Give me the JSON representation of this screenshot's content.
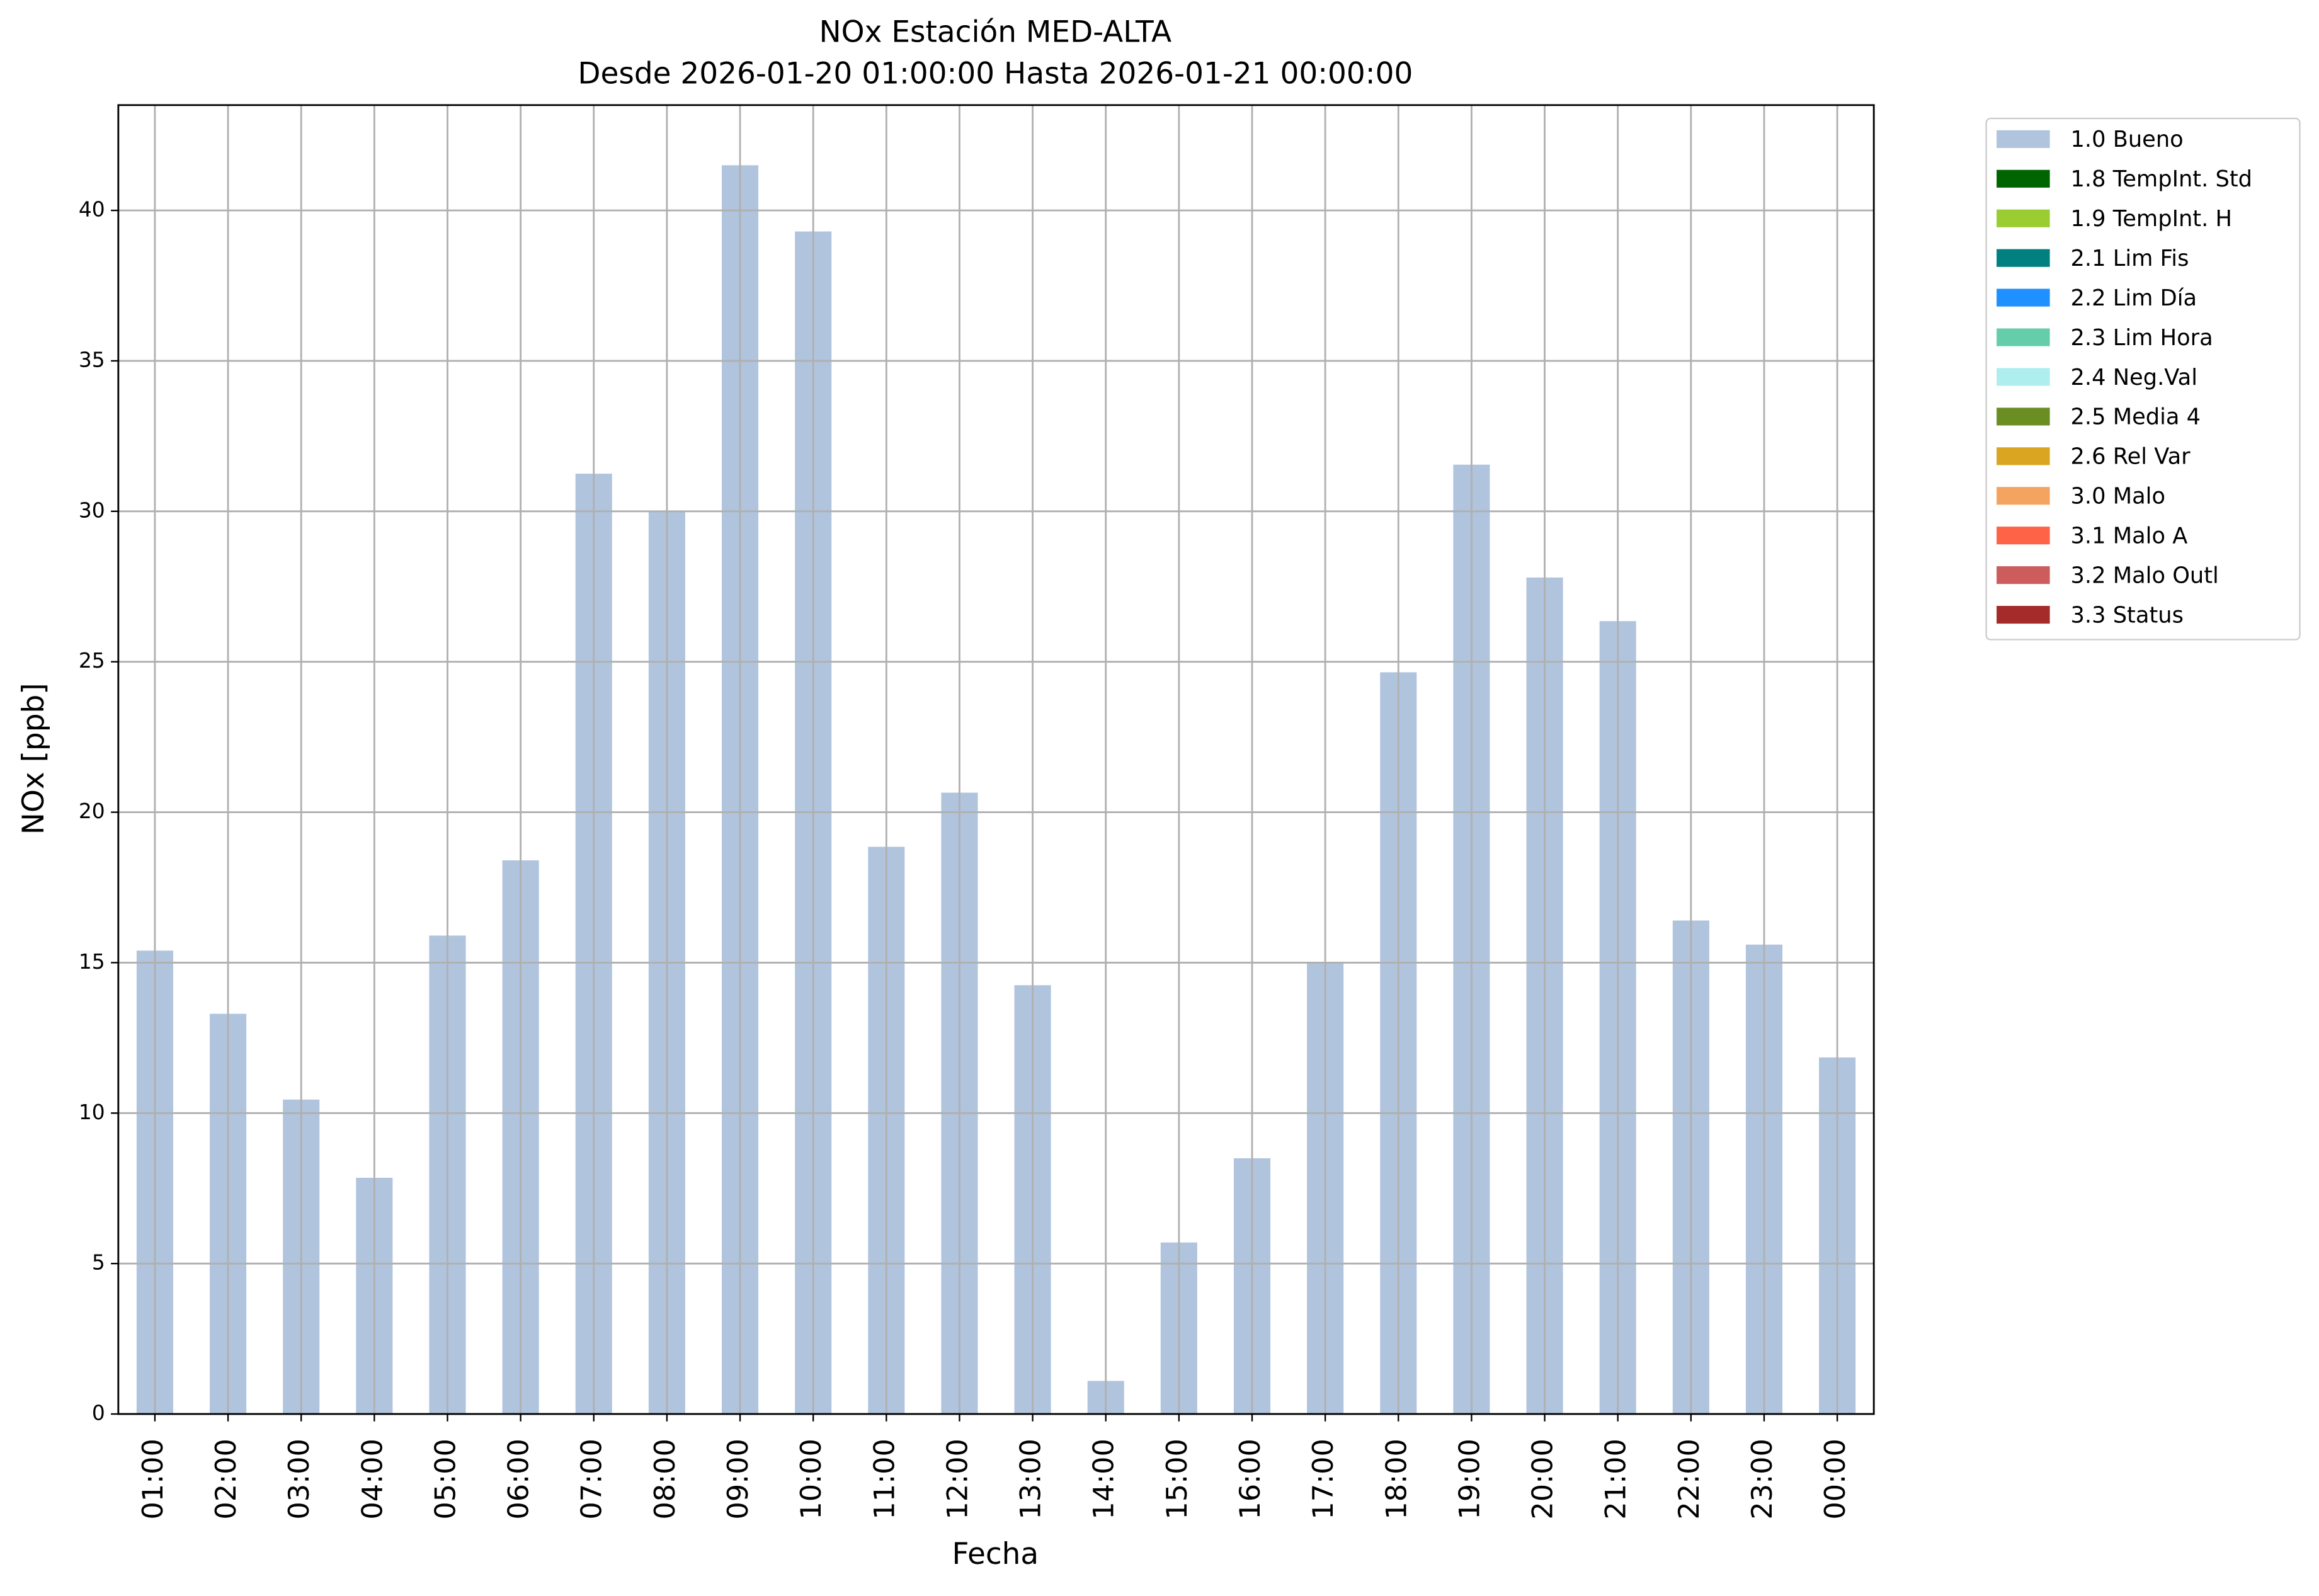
{
  "chart_data": {
    "type": "bar",
    "title": "NOx Estación MED-ALTA",
    "subtitle": "Desde 2026-01-20 01:00:00 Hasta 2026-01-21 00:00:00",
    "x_label": "Fecha",
    "y_label": "NOx [ppb]",
    "categories": [
      "01:00",
      "02:00",
      "03:00",
      "04:00",
      "05:00",
      "06:00",
      "07:00",
      "08:00",
      "09:00",
      "10:00",
      "11:00",
      "12:00",
      "13:00",
      "14:00",
      "15:00",
      "16:00",
      "17:00",
      "18:00",
      "19:00",
      "20:00",
      "21:00",
      "22:00",
      "23:00",
      "00:00"
    ],
    "series": [
      {
        "name": "1.0 Bueno",
        "color": "#b0c4de",
        "values": [
          15.4,
          13.3,
          10.45,
          7.85,
          15.9,
          18.4,
          31.25,
          30,
          41.5,
          39.3,
          18.85,
          20.65,
          14.25,
          1.1,
          5.7,
          8.5,
          15,
          24.65,
          31.55,
          27.8,
          26.35,
          16.4,
          15.6,
          11.85
        ]
      },
      {
        "name": "1.8 TempInt. Std",
        "color": "#006400",
        "values": [
          null,
          null,
          null,
          null,
          null,
          null,
          null,
          null,
          null,
          null,
          null,
          null,
          null,
          null,
          null,
          null,
          null,
          null,
          null,
          null,
          null,
          null,
          null,
          null
        ]
      },
      {
        "name": "1.9 TempInt. H",
        "color": "#9acd32",
        "values": [
          null,
          null,
          null,
          null,
          null,
          null,
          null,
          null,
          null,
          null,
          null,
          null,
          null,
          null,
          null,
          null,
          null,
          null,
          null,
          null,
          null,
          null,
          null,
          null
        ]
      },
      {
        "name": "2.1 Lim Fis",
        "color": "#008080",
        "values": [
          null,
          null,
          null,
          null,
          null,
          null,
          null,
          null,
          null,
          null,
          null,
          null,
          null,
          null,
          null,
          null,
          null,
          null,
          null,
          null,
          null,
          null,
          null,
          null
        ]
      },
      {
        "name": "2.2 Lim Día",
        "color": "#1e90ff",
        "values": [
          null,
          null,
          null,
          null,
          null,
          null,
          null,
          null,
          null,
          null,
          null,
          null,
          null,
          null,
          null,
          null,
          null,
          null,
          null,
          null,
          null,
          null,
          null,
          null
        ]
      },
      {
        "name": "2.3 Lim Hora",
        "color": "#66cdaa",
        "values": [
          null,
          null,
          null,
          null,
          null,
          null,
          null,
          null,
          null,
          null,
          null,
          null,
          null,
          null,
          null,
          null,
          null,
          null,
          null,
          null,
          null,
          null,
          null,
          null
        ]
      },
      {
        "name": "2.4 Neg.Val",
        "color": "#afeeee",
        "values": [
          null,
          null,
          null,
          null,
          null,
          null,
          null,
          null,
          null,
          null,
          null,
          null,
          null,
          null,
          null,
          null,
          null,
          null,
          null,
          null,
          null,
          null,
          null,
          null
        ]
      },
      {
        "name": "2.5 Media 4",
        "color": "#6b8e23",
        "values": [
          null,
          null,
          null,
          null,
          null,
          null,
          null,
          null,
          null,
          null,
          null,
          null,
          null,
          null,
          null,
          null,
          null,
          null,
          null,
          null,
          null,
          null,
          null,
          null
        ]
      },
      {
        "name": "2.6 Rel Var",
        "color": "#daa520",
        "values": [
          null,
          null,
          null,
          null,
          null,
          null,
          null,
          null,
          null,
          null,
          null,
          null,
          null,
          null,
          null,
          null,
          null,
          null,
          null,
          null,
          null,
          null,
          null,
          null
        ]
      },
      {
        "name": "3.0 Malo",
        "color": "#f4a460",
        "values": [
          null,
          null,
          null,
          null,
          null,
          null,
          null,
          null,
          null,
          null,
          null,
          null,
          null,
          null,
          null,
          null,
          null,
          null,
          null,
          null,
          null,
          null,
          null,
          null
        ]
      },
      {
        "name": "3.1 Malo A",
        "color": "#ff6347",
        "values": [
          null,
          null,
          null,
          null,
          null,
          null,
          null,
          null,
          null,
          null,
          null,
          null,
          null,
          null,
          null,
          null,
          null,
          null,
          null,
          null,
          null,
          null,
          null,
          null
        ]
      },
      {
        "name": "3.2 Malo Outl",
        "color": "#cd5c5c",
        "values": [
          null,
          null,
          null,
          null,
          null,
          null,
          null,
          null,
          null,
          null,
          null,
          null,
          null,
          null,
          null,
          null,
          null,
          null,
          null,
          null,
          null,
          null,
          null,
          null
        ]
      },
      {
        "name": "3.3 Status",
        "color": "#a52a2a",
        "values": [
          null,
          null,
          null,
          null,
          null,
          null,
          null,
          null,
          null,
          null,
          null,
          null,
          null,
          null,
          null,
          null,
          null,
          null,
          null,
          null,
          null,
          null,
          null,
          null
        ]
      }
    ],
    "stacked": true,
    "ylim": [
      0,
      43.5
    ],
    "yticks": [
      0,
      5,
      10,
      15,
      20,
      25,
      30,
      35,
      40
    ],
    "grid": true,
    "legend": "outside upper right"
  }
}
